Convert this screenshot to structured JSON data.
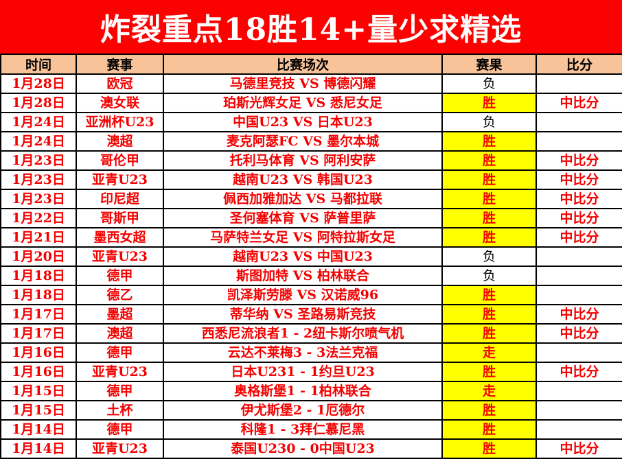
{
  "banner": {
    "title": "炸裂重点18胜14+量少求精选"
  },
  "colors": {
    "banner_bg": "#fb0200",
    "banner_text": "#ffffff",
    "header_bg": "#f8c399",
    "body_text_red": "#f40000",
    "win_highlight_bg": "#ffff00",
    "loss_text": "#000000",
    "border": "#000000"
  },
  "table": {
    "columns": [
      "时间",
      "赛事",
      "比赛场次",
      "赛果",
      "比分"
    ],
    "rows": [
      {
        "date": "1月28日",
        "league": "欧冠",
        "match": "马德里竞技 VS 博德闪耀",
        "result": "负",
        "highlighted": false,
        "score": ""
      },
      {
        "date": "1月28日",
        "league": "澳女联",
        "match": "珀斯光辉女足 VS 悉尼女足",
        "result": "胜",
        "highlighted": true,
        "score": "中比分"
      },
      {
        "date": "1月24日",
        "league": "亚洲杯U23",
        "match": "中国U23 VS 日本U23",
        "result": "负",
        "highlighted": false,
        "score": ""
      },
      {
        "date": "1月24日",
        "league": "澳超",
        "match": "麦克阿瑟FC VS 墨尔本城",
        "result": "胜",
        "highlighted": true,
        "score": ""
      },
      {
        "date": "1月23日",
        "league": "哥伦甲",
        "match": "托利马体育 VS 阿利安萨",
        "result": "胜",
        "highlighted": true,
        "score": "中比分"
      },
      {
        "date": "1月23日",
        "league": "亚青U23",
        "match": "越南U23 VS 韩国U23",
        "result": "胜",
        "highlighted": true,
        "score": "中比分"
      },
      {
        "date": "1月23日",
        "league": "印尼超",
        "match": "佩西加雅加达 VS 马都拉联",
        "result": "胜",
        "highlighted": true,
        "score": "中比分"
      },
      {
        "date": "1月22日",
        "league": "哥斯甲",
        "match": "圣何塞体育 VS 萨普里萨",
        "result": "胜",
        "highlighted": true,
        "score": "中比分"
      },
      {
        "date": "1月21日",
        "league": "墨西女超",
        "match": "马萨特兰女足 VS 阿特拉斯女足",
        "result": "胜",
        "highlighted": true,
        "score": "中比分"
      },
      {
        "date": "1月20日",
        "league": "亚青U23",
        "match": "越南U23 VS 中国U23",
        "result": "负",
        "highlighted": false,
        "score": ""
      },
      {
        "date": "1月18日",
        "league": "德甲",
        "match": "斯图加特 VS 柏林联合",
        "result": "负",
        "highlighted": false,
        "score": ""
      },
      {
        "date": "1月18日",
        "league": "德乙",
        "match": "凯泽斯劳滕 VS 汉诺威96",
        "result": "胜",
        "highlighted": true,
        "score": ""
      },
      {
        "date": "1月17日",
        "league": "墨超",
        "match": "蒂华纳 VS 圣路易斯竞技",
        "result": "胜",
        "highlighted": true,
        "score": "中比分"
      },
      {
        "date": "1月17日",
        "league": "澳超",
        "match": "西悉尼流浪者1 - 2纽卡斯尔喷气机",
        "result": "胜",
        "highlighted": true,
        "score": "中比分"
      },
      {
        "date": "1月16日",
        "league": "德甲",
        "match": "云达不莱梅3 - 3法兰克福",
        "result": "走",
        "highlighted": true,
        "score": ""
      },
      {
        "date": "1月16日",
        "league": "亚青U23",
        "match": "日本U231 - 1约旦U23",
        "result": "胜",
        "highlighted": true,
        "score": "中比分"
      },
      {
        "date": "1月15日",
        "league": "德甲",
        "match": "奥格斯堡1 - 1柏林联合",
        "result": "走",
        "highlighted": true,
        "score": ""
      },
      {
        "date": "1月15日",
        "league": "土杯",
        "match": "伊尤斯堡2 - 1厄德尔",
        "result": "胜",
        "highlighted": true,
        "score": ""
      },
      {
        "date": "1月14日",
        "league": "德甲",
        "match": "科隆1 - 3拜仁慕尼黑",
        "result": "胜",
        "highlighted": true,
        "score": ""
      },
      {
        "date": "1月14日",
        "league": "亚青U23",
        "match": "泰国U230 - 0中国U23",
        "result": "胜",
        "highlighted": true,
        "score": "中比分"
      }
    ]
  }
}
